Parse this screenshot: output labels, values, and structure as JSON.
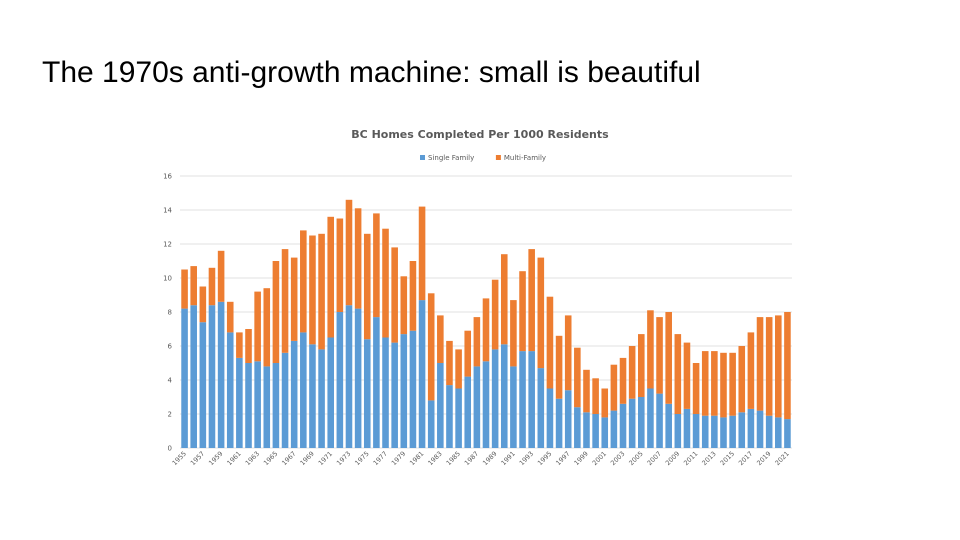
{
  "slide": {
    "title": "The 1970s anti-growth machine: small is beautiful"
  },
  "chart_data": {
    "type": "bar",
    "stacked": true,
    "title": "BC Homes Completed Per 1000 Residents",
    "legend": "top",
    "grid": true,
    "ylim": [
      0,
      16
    ],
    "yticks": [
      0,
      2,
      4,
      6,
      8,
      10,
      12,
      14,
      16
    ],
    "categories": [
      1955,
      1956,
      1957,
      1958,
      1959,
      1960,
      1961,
      1962,
      1963,
      1964,
      1965,
      1966,
      1967,
      1968,
      1969,
      1970,
      1971,
      1972,
      1973,
      1974,
      1975,
      1976,
      1977,
      1978,
      1979,
      1980,
      1981,
      1982,
      1983,
      1984,
      1985,
      1986,
      1987,
      1988,
      1989,
      1990,
      1991,
      1992,
      1993,
      1994,
      1995,
      1996,
      1997,
      1998,
      1999,
      2000,
      2001,
      2002,
      2003,
      2004,
      2005,
      2006,
      2007,
      2008,
      2009,
      2010,
      2011,
      2012,
      2013,
      2014,
      2015,
      2016,
      2017,
      2018,
      2019,
      2020,
      2021
    ],
    "xtick_labels": [
      "1955",
      "1957",
      "1959",
      "1961",
      "1963",
      "1965",
      "1967",
      "1969",
      "1971",
      "1973",
      "1975",
      "1977",
      "1979",
      "1981",
      "1983",
      "1985",
      "1987",
      "1989",
      "1991",
      "1993",
      "1995",
      "1997",
      "1999",
      "2001",
      "2003",
      "2005",
      "2007",
      "2009",
      "2011",
      "2013",
      "2015",
      "2017",
      "2019",
      "2021"
    ],
    "series": [
      {
        "name": "Single Family",
        "color": "#5b9bd5",
        "values": [
          8.2,
          8.4,
          7.4,
          8.4,
          8.6,
          6.8,
          5.3,
          5.0,
          5.1,
          4.8,
          5.0,
          5.6,
          6.3,
          6.8,
          6.1,
          5.8,
          6.5,
          8.0,
          8.4,
          8.2,
          6.4,
          7.7,
          6.5,
          6.2,
          6.7,
          6.9,
          8.7,
          2.8,
          5.0,
          3.7,
          3.5,
          4.2,
          4.8,
          5.1,
          5.8,
          6.1,
          4.8,
          5.7,
          5.7,
          4.7,
          3.5,
          2.9,
          3.4,
          2.4,
          2.1,
          2.0,
          1.8,
          2.2,
          2.6,
          2.9,
          3.0,
          3.5,
          3.2,
          2.6,
          2.0,
          2.3,
          2.0,
          1.9,
          1.9,
          1.8,
          1.9,
          2.1,
          2.3,
          2.2,
          1.9,
          1.8,
          1.7
        ]
      },
      {
        "name": "Multi-Family",
        "color": "#ed7d31",
        "values": [
          2.3,
          2.3,
          2.1,
          2.2,
          3.0,
          1.8,
          1.5,
          2.0,
          4.1,
          4.6,
          6.0,
          6.1,
          4.9,
          6.0,
          6.4,
          6.8,
          7.1,
          5.5,
          6.2,
          5.9,
          6.2,
          6.1,
          6.4,
          5.6,
          3.4,
          4.1,
          5.5,
          6.3,
          2.8,
          2.6,
          2.3,
          2.7,
          2.9,
          3.7,
          4.1,
          5.3,
          3.9,
          4.7,
          6.0,
          6.5,
          5.4,
          3.7,
          4.4,
          3.5,
          2.5,
          2.1,
          1.7,
          2.7,
          2.7,
          3.1,
          3.7,
          4.6,
          4.5,
          5.4,
          4.7,
          3.9,
          3.0,
          3.8,
          3.8,
          3.8,
          3.7,
          3.9,
          4.5,
          5.5,
          5.8,
          6.0,
          6.3
        ]
      }
    ]
  }
}
